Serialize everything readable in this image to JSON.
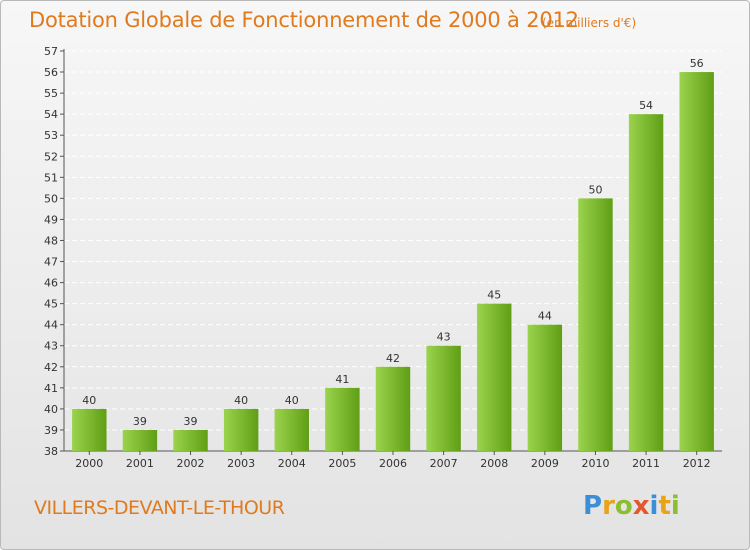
{
  "header": {
    "title": "Dotation Globale de Fonctionnement de 2000 à 2012",
    "unit": "(en milliers d'€)"
  },
  "footer": {
    "place": "VILLERS-DEVANT-LE-THOUR",
    "logo_letters": [
      "P",
      "r",
      "o",
      "x",
      "i",
      "t",
      "i"
    ],
    "logo_colors": [
      "#3c8fd6",
      "#e8a317",
      "#8bbf2f",
      "#e4572e",
      "#3c8fd6",
      "#e8a317",
      "#8bbf2f"
    ]
  },
  "colors": {
    "bar_light": "#9bd34d",
    "bar_dark": "#5f9e15",
    "axis": "#555555",
    "grid": "#ffffff",
    "text": "#333333"
  },
  "chart_data": {
    "type": "bar",
    "title": "Dotation Globale de Fonctionnement de 2000 à 2012",
    "subtitle": "(en milliers d'€)",
    "xlabel": "",
    "ylabel": "",
    "categories": [
      "2000",
      "2001",
      "2002",
      "2003",
      "2004",
      "2005",
      "2006",
      "2007",
      "2008",
      "2009",
      "2010",
      "2011",
      "2012"
    ],
    "values": [
      40,
      39,
      39,
      40,
      40,
      41,
      42,
      43,
      45,
      44,
      50,
      54,
      56
    ],
    "ylim": [
      38,
      57
    ],
    "yticks": [
      38,
      39,
      40,
      41,
      42,
      43,
      44,
      45,
      46,
      47,
      48,
      49,
      50,
      51,
      52,
      53,
      54,
      55,
      56,
      57
    ],
    "grid": true,
    "legend": "none"
  }
}
